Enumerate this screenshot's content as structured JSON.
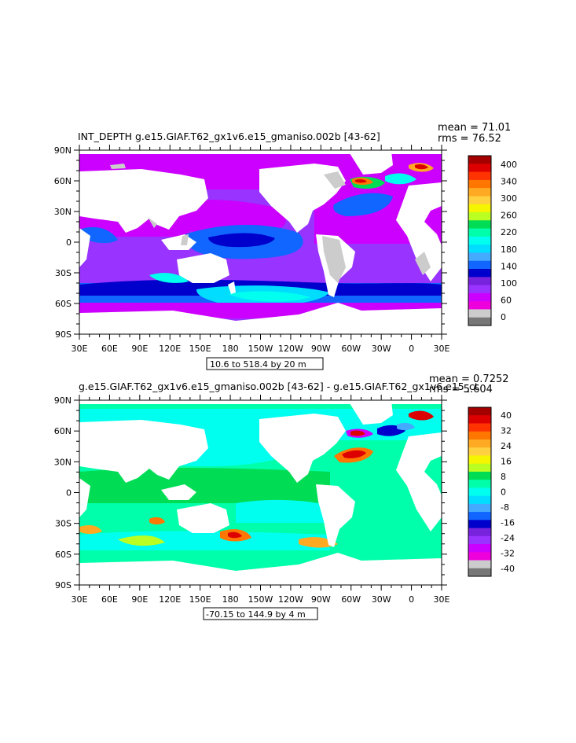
{
  "chart_data": [
    {
      "type": "heatmap",
      "title": "INT_DEPTH g.e15.GIAF.T62_gx1v6.e15_gmaniso.002b [43-62]",
      "stats": {
        "mean": "mean = 71.01",
        "rms": "rms = 76.52"
      },
      "range_label": "10.6 to 518.4 by 20 m",
      "x_ticks": [
        "30E",
        "60E",
        "90E",
        "120E",
        "150E",
        "180",
        "150W",
        "120W",
        "90W",
        "60W",
        "30W",
        "0",
        "30E"
      ],
      "y_ticks": [
        "90N",
        "60N",
        "30N",
        "0",
        "30S",
        "60S",
        "90S"
      ],
      "colorbar": {
        "labels": [
          "400",
          "340",
          "300",
          "260",
          "220",
          "180",
          "140",
          "100",
          "60",
          "0"
        ],
        "colors": [
          "#a50000",
          "#dd0000",
          "#ff3300",
          "#ff7700",
          "#ffaa22",
          "#ffd040",
          "#f5f500",
          "#bbff22",
          "#00dd55",
          "#00ffaa",
          "#00ffee",
          "#00ddff",
          "#44aaff",
          "#1166ff",
          "#0000cc",
          "#7722dd",
          "#9933ff",
          "#cc00ff",
          "#ee00dd",
          "#cccccc",
          "#777777"
        ]
      },
      "field_summary": "Mostly 40-100 m (purple/magenta) across ocean; 100-180 m in Southern Ocean band; maxima 300-400 m in North Atlantic near 60N"
    },
    {
      "type": "heatmap",
      "title": "g.e15.GIAF.T62_gx1v6.e15_gmaniso.002b [43-62] - g.e15.GIAF.T62_gx1v6.e15_ct",
      "stats": {
        "mean": "mean = 0.7252",
        "rms": "rms = 5.604"
      },
      "range_label": "-70.15 to 144.9 by 4 m",
      "x_ticks": [
        "30E",
        "60E",
        "90E",
        "120E",
        "150E",
        "180",
        "150W",
        "120W",
        "90W",
        "60W",
        "30W",
        "0",
        "30E"
      ],
      "y_ticks": [
        "90N",
        "60N",
        "30N",
        "0",
        "30S",
        "60S",
        "90S"
      ],
      "colorbar": {
        "labels": [
          "40",
          "32",
          "24",
          "16",
          "8",
          "0",
          "-8",
          "-16",
          "-24",
          "-32",
          "-40"
        ],
        "colors": [
          "#a50000",
          "#dd0000",
          "#ff3300",
          "#ff7700",
          "#ffaa22",
          "#ffd040",
          "#f5f500",
          "#bbff22",
          "#00dd55",
          "#00ffaa",
          "#00ffee",
          "#00ddff",
          "#44aaff",
          "#1166ff",
          "#0000cc",
          "#7722dd",
          "#9933ff",
          "#cc00ff",
          "#ee00dd",
          "#cccccc",
          "#777777"
        ]
      },
      "field_summary": "Mostly -4 to 4 m (green/cyan); positive anomalies up to 40 m in Gulf Stream / North Atlantic and Southern Ocean patches"
    }
  ]
}
